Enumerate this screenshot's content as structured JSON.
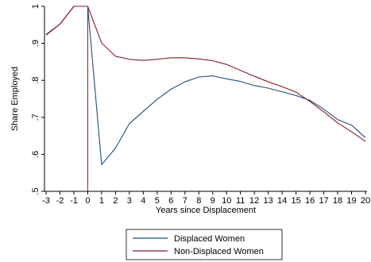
{
  "chart_data": {
    "type": "line",
    "xlabel": "Years since Displacement",
    "ylabel": "Share Employed",
    "xlim": [
      -3,
      20
    ],
    "ylim": [
      0.5,
      1.0
    ],
    "x": [
      -3,
      -2,
      -1,
      0,
      1,
      2,
      3,
      4,
      5,
      6,
      7,
      8,
      9,
      10,
      11,
      12,
      13,
      14,
      15,
      16,
      17,
      18,
      19,
      20
    ],
    "x_ticks": [
      "-3",
      "-2",
      "-1",
      "0",
      "1",
      "2",
      "3",
      "4",
      "5",
      "6",
      "7",
      "8",
      "9",
      "10",
      "11",
      "12",
      "13",
      "14",
      "15",
      "16",
      "17",
      "18",
      "19",
      "20"
    ],
    "y_ticks": [
      {
        "value": 0.5,
        "label": ".5"
      },
      {
        "value": 0.6,
        "label": ".6"
      },
      {
        "value": 0.7,
        "label": ".7"
      },
      {
        "value": 0.8,
        "label": ".8"
      },
      {
        "value": 0.9,
        "label": ".9"
      },
      {
        "value": 1.0,
        "label": "1"
      }
    ],
    "vline_x": 0,
    "grid": false,
    "legend_position": "bottom",
    "series": [
      {
        "name": "Displaced Women",
        "color": "#1f4e79",
        "values": [
          0.924,
          0.952,
          1.0,
          1.0,
          0.572,
          0.617,
          0.683,
          0.716,
          0.749,
          0.776,
          0.796,
          0.809,
          0.812,
          0.804,
          0.797,
          0.786,
          0.779,
          0.769,
          0.759,
          0.746,
          0.722,
          0.694,
          0.679,
          0.645
        ]
      },
      {
        "name": "Non-Displaced Women",
        "color": "#8b1a2b",
        "values": [
          0.922,
          0.952,
          1.0,
          1.0,
          0.901,
          0.865,
          0.857,
          0.854,
          0.857,
          0.861,
          0.861,
          0.858,
          0.853,
          0.843,
          0.827,
          0.811,
          0.796,
          0.783,
          0.768,
          0.743,
          0.715,
          0.685,
          0.661,
          0.635
        ]
      }
    ],
    "vline_color": "#8b1a2b",
    "axis_color": "#000000"
  }
}
